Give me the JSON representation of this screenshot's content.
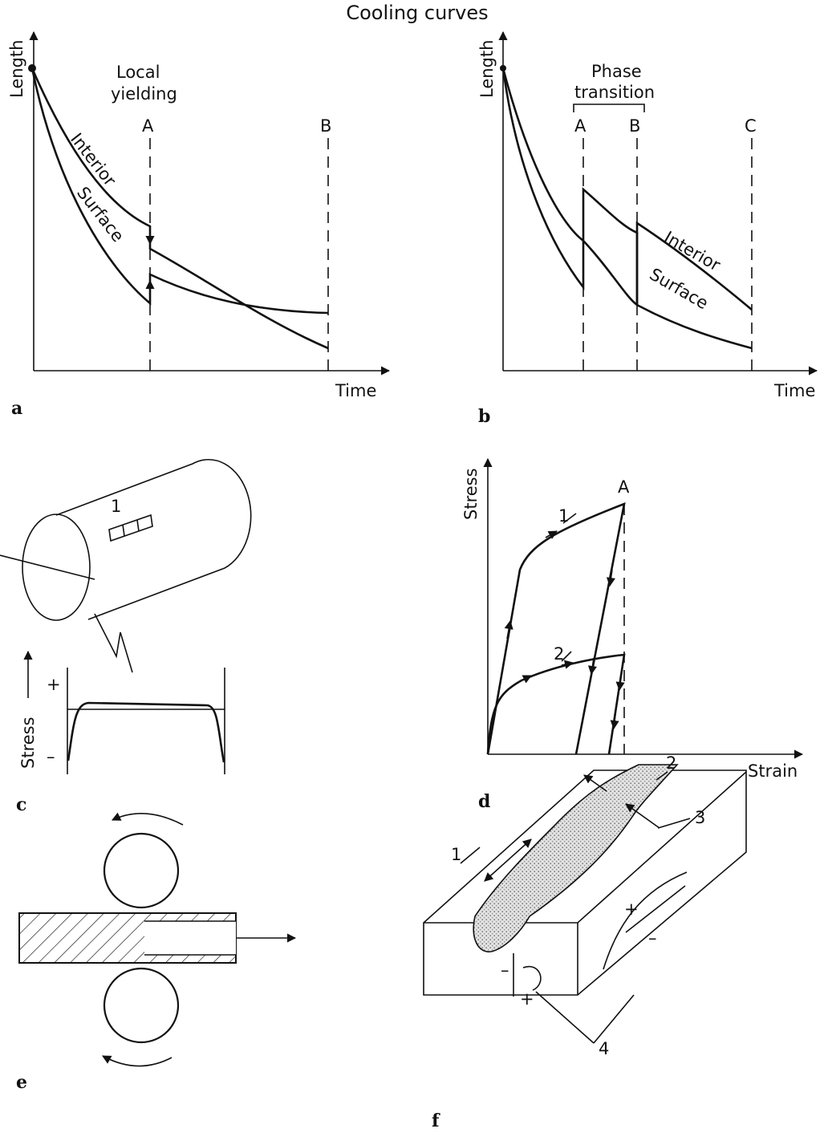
{
  "title": "Cooling curves",
  "panels": {
    "a": {
      "letter": "a",
      "ylabel": "Length",
      "xlabel": "Time",
      "annotation_line1": "Local",
      "annotation_line2": "yielding",
      "marker_a": "A",
      "marker_b": "B",
      "curve_interior": "Interior",
      "curve_surface": "Surface"
    },
    "b": {
      "letter": "b",
      "ylabel": "Length",
      "xlabel": "Time",
      "annotation_line1": "Phase",
      "annotation_line2": "transition",
      "marker_a": "A",
      "marker_b": "B",
      "marker_c": "C",
      "curve_interior": "Interior",
      "curve_surface": "Surface"
    },
    "c": {
      "letter": "c",
      "label_1": "1",
      "ylabel": "Stress",
      "plus": "+",
      "minus": "–"
    },
    "d": {
      "letter": "d",
      "ylabel": "Stress",
      "xlabel": "Strain",
      "marker_a": "A",
      "curve_1": "1",
      "curve_2": "2"
    },
    "e": {
      "letter": "e"
    },
    "f": {
      "letter": "f",
      "label_1": "1",
      "label_2": "2",
      "label_3": "3",
      "label_4": "4",
      "plus_right": "+",
      "minus_right": "–",
      "minus_left": "–",
      "plus_left": "+"
    }
  }
}
